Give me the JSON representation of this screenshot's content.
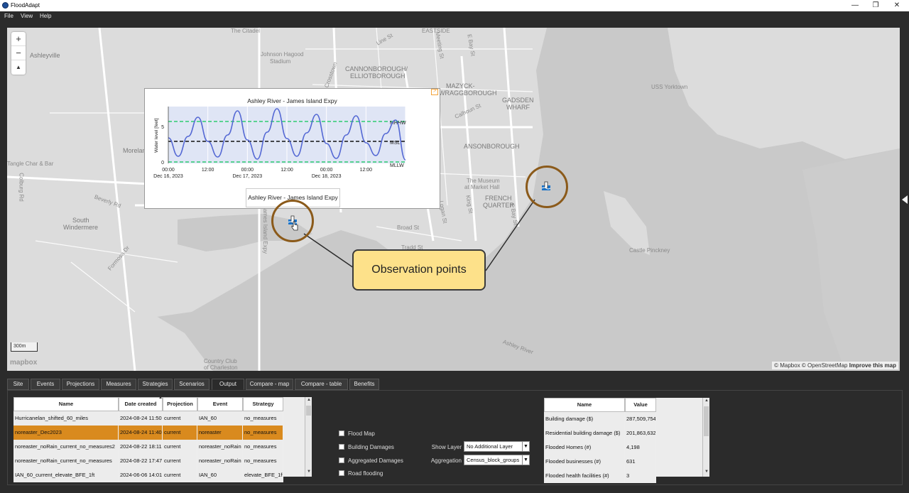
{
  "window": {
    "title": "FloodAdapt",
    "controls": {
      "minimize": "—",
      "restore": "❐",
      "close": "✕"
    }
  },
  "menu": {
    "items": [
      "File",
      "View",
      "Help"
    ]
  },
  "map": {
    "zoom_in": "+",
    "zoom_out": "−",
    "compass": "▲",
    "scale": "300m",
    "logo": "mapbox",
    "attribution_1": "© Mapbox © OpenStreetMap",
    "attribution_2": "Improve this map",
    "labels": {
      "citadel": "The Citadel",
      "hagood": "Johnson Hagood",
      "hagood2": "Stadium",
      "ashleyville": "Ashleyville",
      "eastside": "EASTSIDE",
      "cannon": "CANNONBOROUGH/",
      "elliot": "ELLIOTBOROUGH",
      "mazyck": "MAZYCK-",
      "wraggs": "WRAGGBOROUGH",
      "gadsden": "GADSDEN",
      "wharf": "WHARF",
      "yorktown": "USS Yorktown",
      "ansonborough": "ANSONBOROUGH",
      "market": "The Museum",
      "market2": "at Market Hall",
      "french": "FRENCH",
      "quarter": "QUARTER",
      "broad": "Broad St",
      "tradd": "Tradd St",
      "south": "South",
      "windermere": "Windermere",
      "beverly": "Beverly Rd",
      "formosa": "Formosa Dr",
      "moreland": "Morelan",
      "tangle": "Tangle Char & Bar",
      "pinckney": "Castle Pinckney",
      "ashley_river": "Ashley River",
      "country_club": "Country Club",
      "of_charleston": "of Charleston",
      "calhoun": "Calhoun St",
      "line": "Line St",
      "meeting": "Meeting St",
      "logan": "Logan St",
      "king": "King St",
      "bay": "E Bay St",
      "crosstown": "Crosstown",
      "james_island": "James Island Expy",
      "colburg": "Colburg Rd"
    },
    "observation_label": "Observation points",
    "tooltip": "Ashley River - James Island Expy",
    "colors": {
      "water": "#c9c9c9",
      "land": "#dcdcdc",
      "ring": "#8b5a1a",
      "callout": "#fde18a"
    }
  },
  "chart_data": {
    "type": "line",
    "title": "Ashley River - James Island Expy",
    "ylabel": "Water level [feet]",
    "xlabel": "",
    "x_ticks": [
      "00:00\nDec 16, 2023",
      "12:00",
      "00:00\nDec 17, 2023",
      "12:00",
      "00:00\nDec 18, 2023",
      "12:00"
    ],
    "y_ticks": [
      "0",
      "5"
    ],
    "ylim": [
      -0.2,
      7.8
    ],
    "reference_lines": [
      {
        "name": "MHHW",
        "value": 5.7,
        "style": "dashed",
        "color": "#2ecc71"
      },
      {
        "name": "MSL",
        "value": 2.9,
        "style": "dashed",
        "color": "#111111"
      },
      {
        "name": "MLLW",
        "value": 0.0,
        "style": "dashed",
        "color": "#2ecc71"
      }
    ],
    "series": [
      {
        "color": "#5468d4",
        "x_hours": [
          0,
          3,
          6,
          9,
          12,
          15,
          18,
          21,
          24,
          27,
          30,
          33,
          36,
          39,
          42,
          45,
          48,
          51,
          54,
          57,
          60,
          63,
          66,
          69,
          72
        ],
        "values": [
          3.4,
          0.8,
          3.6,
          6.3,
          2.9,
          0.7,
          3.8,
          7.2,
          3.1,
          0.4,
          4.2,
          7.5,
          3.3,
          0.8,
          4.1,
          6.7,
          2.6,
          0.5,
          3.8,
          6.5,
          2.7,
          0.9,
          4.0,
          5.9,
          0.3
        ]
      }
    ]
  },
  "tabs": [
    "Site",
    "Events",
    "Projections",
    "Measures",
    "Strategies",
    "Scenarios",
    "Output",
    "Compare - map",
    "Compare - table",
    "Benefits"
  ],
  "active_tab": "Output",
  "scenarios_table": {
    "columns": [
      "Name",
      "Date created",
      "Projection",
      "Event",
      "Strategy"
    ],
    "rows": [
      [
        "Hurricanelan_shifted_60_miles",
        "2024-08-24 11:50",
        "current",
        "IAN_60",
        "no_measures"
      ],
      [
        "noreaster_Dec2023",
        "2024-08-24 11:40",
        "current",
        "noreaster",
        "no_measures"
      ],
      [
        "noreaster_noRain_current_no_measures2",
        "2024-08-22 18:11",
        "current",
        "noreaster_noRain",
        "no_measures"
      ],
      [
        "noreaster_noRain_current_no_measures",
        "2024-08-22 17:47",
        "current",
        "noreaster_noRain",
        "no_measures"
      ],
      [
        "IAN_60_current_elevate_BFE_1ft",
        "2024-06-06 14:01",
        "current",
        "IAN_60",
        "elevate_BFE_1ft"
      ]
    ],
    "selected_row": 1,
    "sort_indicator": "▲"
  },
  "layers": {
    "checkboxes": [
      "Flood Map",
      "Building Damages",
      "Aggregated Damages",
      "Road flooding"
    ],
    "show_layer_label": "Show Layer",
    "show_layer_value": "No Additional Layer",
    "aggregation_label": "Aggregation",
    "aggregation_value": "Census_block_groups"
  },
  "metrics_table": {
    "columns": [
      "Name",
      "Value"
    ],
    "rows": [
      [
        "Building damage ($)",
        "287,509,754"
      ],
      [
        "Residential building damage ($)",
        "201,863,632"
      ],
      [
        "Flooded Homes (#)",
        "4,198"
      ],
      [
        "Flooded businesses (#)",
        "631"
      ],
      [
        "Flooded health facilities (#)",
        "3"
      ]
    ]
  }
}
